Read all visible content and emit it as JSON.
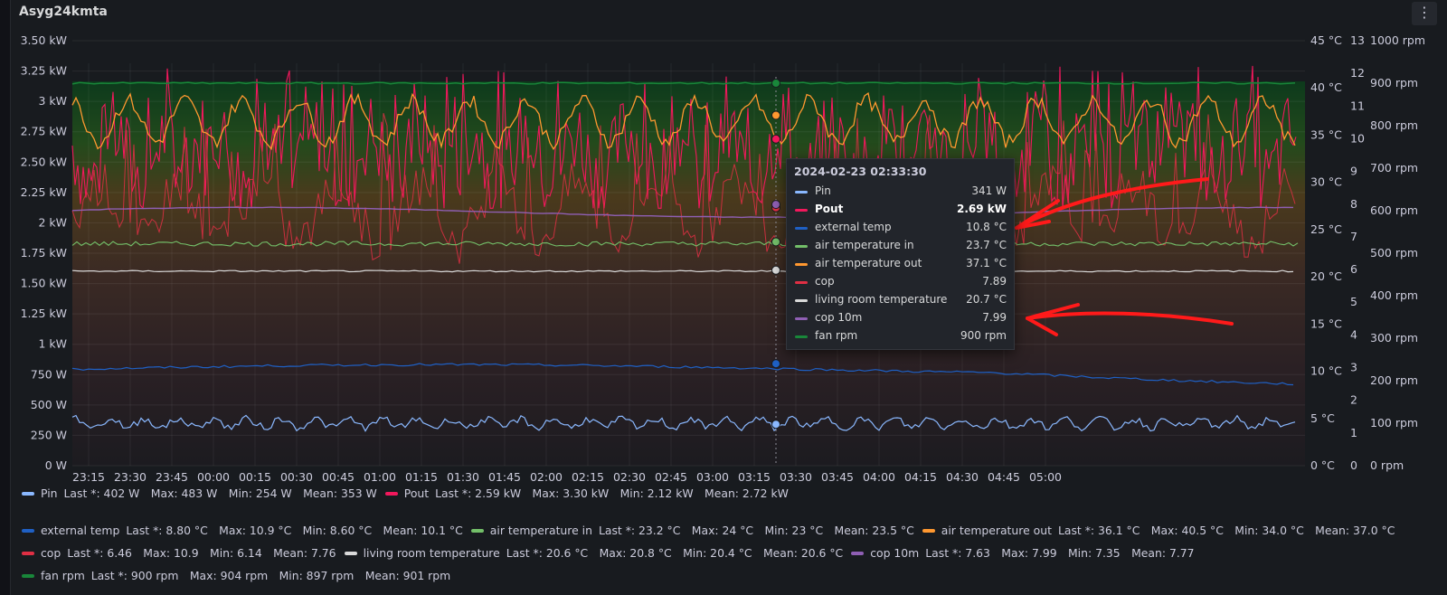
{
  "panel": {
    "title": "Asyg24kmta",
    "menu_icon": "vertical-dots-icon"
  },
  "chart_data": {
    "type": "line",
    "x": [
      "23:15",
      "23:30",
      "23:45",
      "00:00",
      "00:15",
      "00:30",
      "00:45",
      "01:00",
      "01:15",
      "01:30",
      "01:45",
      "02:00",
      "02:15",
      "02:30",
      "02:45",
      "03:00",
      "03:15",
      "03:30",
      "03:45",
      "04:00",
      "04:15",
      "04:30",
      "04:45",
      "05:00"
    ],
    "xlabel": "",
    "axes": {
      "power": {
        "ticks": [
          "0 W",
          "250 W",
          "500 W",
          "750 W",
          "1 kW",
          "1.25 kW",
          "1.50 kW",
          "1.75 kW",
          "2 kW",
          "2.25 kW",
          "2.50 kW",
          "2.75 kW",
          "3 kW",
          "3.25 kW",
          "3.50 kW"
        ],
        "ylim": [
          0,
          3500
        ],
        "unit": "W",
        "position": "left"
      },
      "temperature": {
        "ticks": [
          "0 °C",
          "5 °C",
          "10 °C",
          "15 °C",
          "20 °C",
          "25 °C",
          "30 °C",
          "35 °C",
          "40 °C",
          "45 °C"
        ],
        "ylim": [
          0,
          45
        ],
        "unit": "°C",
        "position": "right"
      },
      "cop": {
        "ticks": [
          "0",
          "1",
          "2",
          "3",
          "4",
          "5",
          "6",
          "7",
          "8",
          "9",
          "10",
          "11",
          "12",
          "13"
        ],
        "ylim": [
          0,
          13
        ],
        "position": "right"
      },
      "rpm": {
        "ticks": [
          "0 rpm",
          "100 rpm",
          "200 rpm",
          "300 rpm",
          "400 rpm",
          "500 rpm",
          "600 rpm",
          "700 rpm",
          "800 rpm",
          "900 rpm",
          "1000 rpm"
        ],
        "ylim": [
          0,
          1000
        ],
        "unit": "rpm",
        "position": "right"
      }
    },
    "series": [
      {
        "name": "Pin",
        "axis": "power",
        "color": "#8ab8ff",
        "last": 402,
        "max": 483,
        "min": 254,
        "mean": 353,
        "at_cursor": 341
      },
      {
        "name": "Pout",
        "axis": "power",
        "color": "#f2185c",
        "last": 2590,
        "max": 3300,
        "min": 2120,
        "mean": 2720,
        "at_cursor": 2690
      },
      {
        "name": "external temp",
        "axis": "temperature",
        "color": "#1f60c4",
        "last": 8.8,
        "max": 10.9,
        "min": 8.6,
        "mean": 10.1,
        "at_cursor": 10.8
      },
      {
        "name": "air temperature in",
        "axis": "temperature",
        "color": "#73bf69",
        "last": 23.2,
        "max": 24,
        "min": 23,
        "mean": 23.5,
        "at_cursor": 23.7
      },
      {
        "name": "air temperature out",
        "axis": "temperature",
        "color": "#ff9830",
        "last": 36.1,
        "max": 40.5,
        "min": 34.0,
        "mean": 37.0,
        "at_cursor": 37.1
      },
      {
        "name": "cop",
        "axis": "cop",
        "color": "#e02f44",
        "last": 6.46,
        "max": 10.9,
        "min": 6.14,
        "mean": 7.76,
        "at_cursor": 7.89
      },
      {
        "name": "living room temperature",
        "axis": "temperature",
        "color": "#d9d9d9",
        "last": 20.6,
        "max": 20.8,
        "min": 20.4,
        "mean": 20.6,
        "at_cursor": 20.7
      },
      {
        "name": "cop 10m",
        "axis": "cop",
        "color": "#8f5fb4",
        "last": 7.63,
        "max": 7.99,
        "min": 7.35,
        "mean": 7.77,
        "at_cursor": 7.99
      },
      {
        "name": "fan rpm",
        "axis": "rpm",
        "color": "#19873a",
        "last": 900,
        "max": 904,
        "min": 897,
        "mean": 901,
        "at_cursor": 900
      }
    ],
    "cursor_time": "02:33:30",
    "grid": true,
    "legend_placement": "bottom"
  },
  "tooltip": {
    "time": "2024-02-23 02:33:30",
    "rows": [
      {
        "name": "Pin",
        "value": "341 W",
        "color": "#8ab8ff",
        "bold": false
      },
      {
        "name": "Pout",
        "value": "2.69 kW",
        "color": "#f2185c",
        "bold": true
      },
      {
        "name": "external temp",
        "value": "10.8 °C",
        "color": "#1f60c4",
        "bold": false
      },
      {
        "name": "air temperature in",
        "value": "23.7 °C",
        "color": "#73bf69",
        "bold": false
      },
      {
        "name": "air temperature out",
        "value": "37.1 °C",
        "color": "#ff9830",
        "bold": false
      },
      {
        "name": "cop",
        "value": "7.89",
        "color": "#e02f44",
        "bold": false
      },
      {
        "name": "living room temperature",
        "value": "20.7 °C",
        "color": "#d9d9d9",
        "bold": false
      },
      {
        "name": "cop 10m",
        "value": "7.99",
        "color": "#8f5fb4",
        "bold": false
      },
      {
        "name": "fan rpm",
        "value": "900 rpm",
        "color": "#19873a",
        "bold": false
      }
    ]
  },
  "legend": {
    "rows": [
      [
        {
          "name": "Pin",
          "stats": "Last *: 402 W   Max: 483 W   Min: 254 W   Mean: 353 W",
          "color": "#8ab8ff"
        },
        {
          "name": "Pout",
          "stats": "Last *: 2.59 kW   Max: 3.30 kW   Min: 2.12 kW   Mean: 2.72 kW",
          "color": "#f2185c"
        }
      ],
      [
        {
          "name": "external temp",
          "stats": "Last *: 8.80 °C   Max: 10.9 °C   Min: 8.60 °C   Mean: 10.1 °C",
          "color": "#1f60c4"
        },
        {
          "name": "air temperature in",
          "stats": "Last *: 23.2 °C   Max: 24 °C   Min: 23 °C   Mean: 23.5 °C",
          "color": "#73bf69"
        },
        {
          "name": "air temperature out",
          "stats": "Last *: 36.1 °C   Max: 40.5 °C   Min: 34.0 °C   Mean: 37.0 °C",
          "color": "#ff9830"
        }
      ],
      [
        {
          "name": "cop",
          "stats": "Last *: 6.46   Max: 10.9   Min: 6.14   Mean: 7.76",
          "color": "#e02f44"
        },
        {
          "name": "living room temperature",
          "stats": "Last *: 20.6 °C   Max: 20.8 °C   Min: 20.4 °C   Mean: 20.6 °C",
          "color": "#d9d9d9"
        },
        {
          "name": "cop 10m",
          "stats": "Last *: 7.63   Max: 7.99   Min: 7.35   Mean: 7.77",
          "color": "#8f5fb4"
        }
      ],
      [
        {
          "name": "fan rpm",
          "stats": "Last *: 900 rpm   Max: 904 rpm   Min: 897 rpm   Mean: 901 rpm",
          "color": "#19873a"
        }
      ]
    ]
  },
  "annotations": {
    "arrow_color": "#ff1a1a"
  }
}
